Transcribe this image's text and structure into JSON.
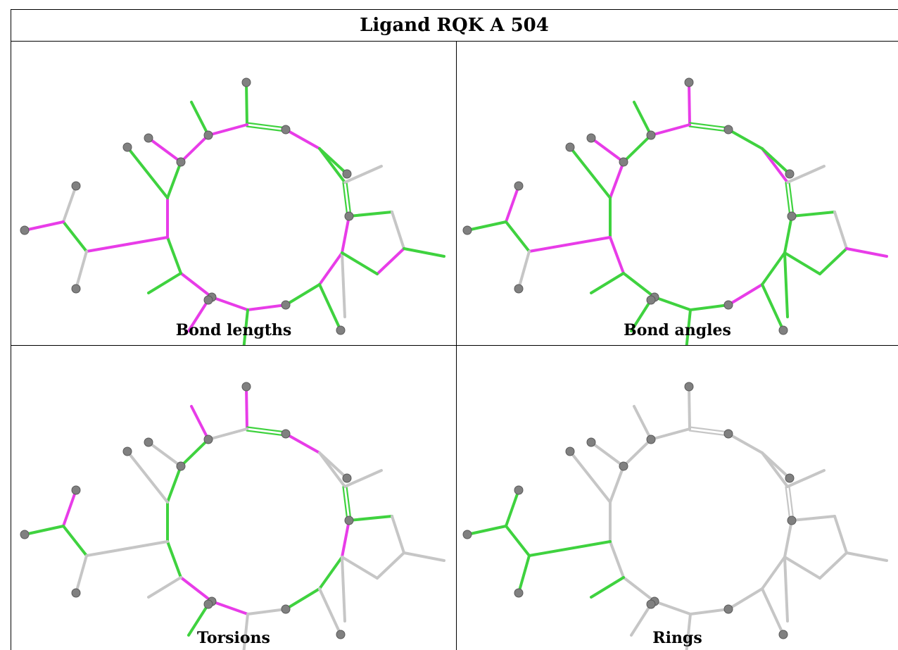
{
  "title": "Ligand RQK A 504",
  "panels": [
    {
      "caption": "Bond lengths"
    },
    {
      "caption": "Bond angles"
    },
    {
      "caption": "Torsions"
    },
    {
      "caption": "Rings"
    }
  ],
  "colors": {
    "outlier": "#e83ce8",
    "ok": "#3fd23f",
    "neutral": "#c6c6c6",
    "atom": "#808080",
    "border": "#000000"
  },
  "bond_colors": {
    "bond_lengths": "ggmggmmgmmmgmgmmgmggngngmmgmgnmngnmgggggngmgmm",
    "bond_angles": "mggmgggmgggmgmgmgmggnggggggmgmgngnggmgggngmggg",
    "torsions": "mgmngmggnmmggggnmnnnnnnnngnngmgngnnnnnnnnnnnnn",
    "rings": "nnnnnnnnnnnnnnnnnnnnnnnnnnggggggnnnnnnnnnnnnnn"
  },
  "double_bonds": "ngnngnnnnnnnnnnnnnnnnnnnnnnnnnnnnnnnnnnnnnnnnn"
}
